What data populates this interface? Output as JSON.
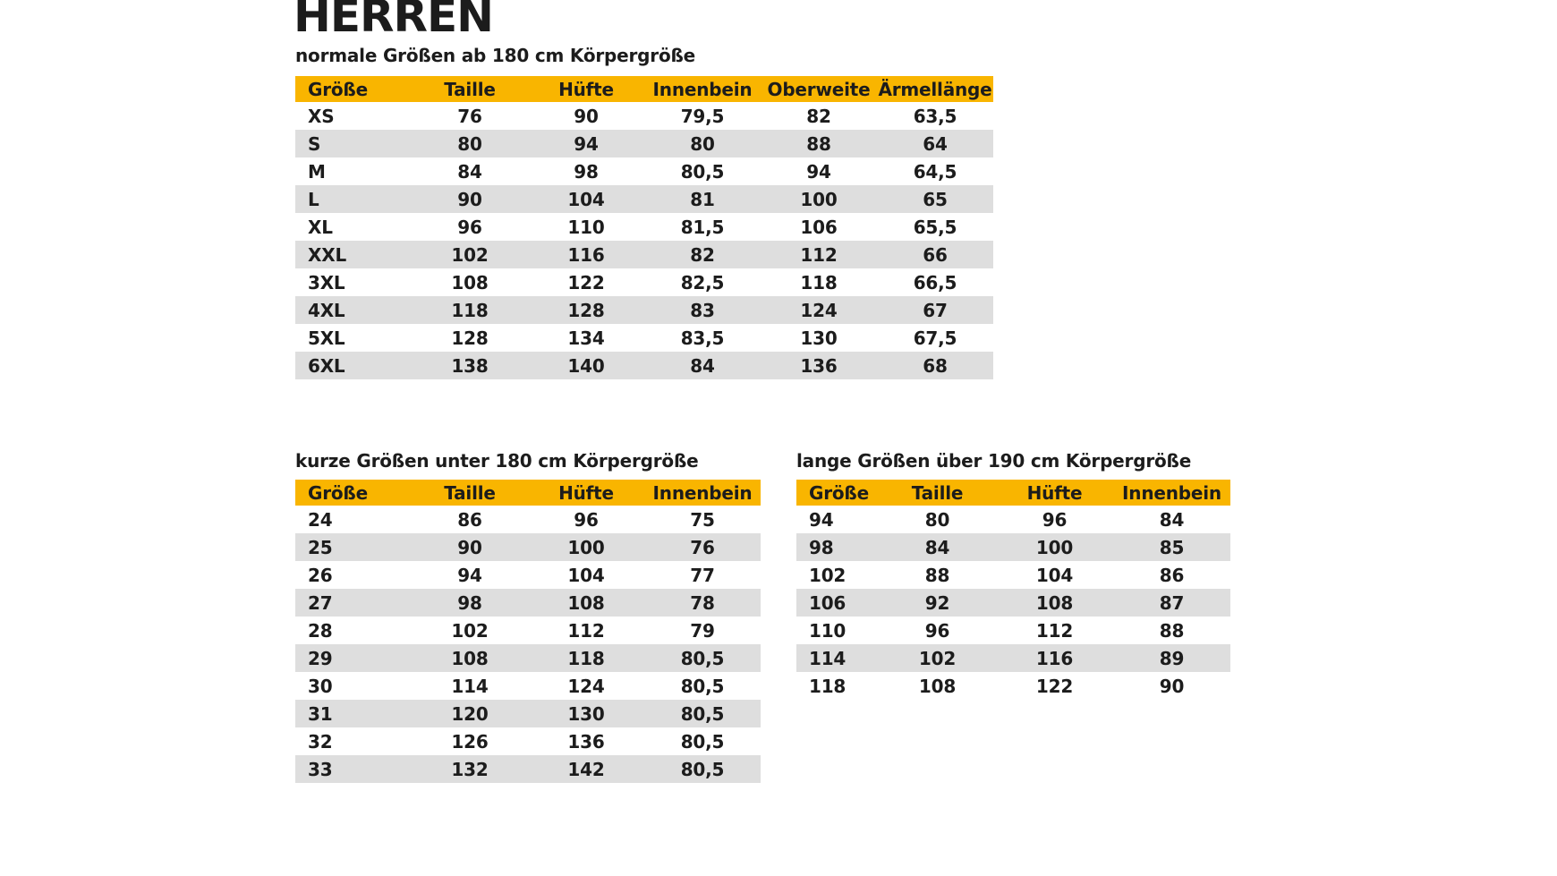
{
  "page": {
    "title": "HERREN"
  },
  "colors": {
    "header_bg": "#F9B500",
    "stripe": "#DEDEDE",
    "text": "#1C1C1C",
    "background": "#FFFFFF"
  },
  "chart_data": [
    {
      "type": "table",
      "title": "normale Größen ab 180 cm Körpergröße",
      "columns": [
        "Größe",
        "Taille",
        "Hüfte",
        "Innenbein",
        "Oberweite",
        "Ärmellänge"
      ],
      "rows": [
        [
          "XS",
          "76",
          "90",
          "79,5",
          "82",
          "63,5"
        ],
        [
          "S",
          "80",
          "94",
          "80",
          "88",
          "64"
        ],
        [
          "M",
          "84",
          "98",
          "80,5",
          "94",
          "64,5"
        ],
        [
          "L",
          "90",
          "104",
          "81",
          "100",
          "65"
        ],
        [
          "XL",
          "96",
          "110",
          "81,5",
          "106",
          "65,5"
        ],
        [
          "XXL",
          "102",
          "116",
          "82",
          "112",
          "66"
        ],
        [
          "3XL",
          "108",
          "122",
          "82,5",
          "118",
          "66,5"
        ],
        [
          "4XL",
          "118",
          "128",
          "83",
          "124",
          "67"
        ],
        [
          "5XL",
          "128",
          "134",
          "83,5",
          "130",
          "67,5"
        ],
        [
          "6XL",
          "138",
          "140",
          "84",
          "136",
          "68"
        ]
      ]
    },
    {
      "type": "table",
      "title": "kurze Größen unter 180 cm Körpergröße",
      "columns": [
        "Größe",
        "Taille",
        "Hüfte",
        "Innenbein"
      ],
      "rows": [
        [
          "24",
          "86",
          "96",
          "75"
        ],
        [
          "25",
          "90",
          "100",
          "76"
        ],
        [
          "26",
          "94",
          "104",
          "77"
        ],
        [
          "27",
          "98",
          "108",
          "78"
        ],
        [
          "28",
          "102",
          "112",
          "79"
        ],
        [
          "29",
          "108",
          "118",
          "80,5"
        ],
        [
          "30",
          "114",
          "124",
          "80,5"
        ],
        [
          "31",
          "120",
          "130",
          "80,5"
        ],
        [
          "32",
          "126",
          "136",
          "80,5"
        ],
        [
          "33",
          "132",
          "142",
          "80,5"
        ]
      ]
    },
    {
      "type": "table",
      "title": "lange Größen über 190 cm Körpergröße",
      "columns": [
        "Größe",
        "Taille",
        "Hüfte",
        "Innenbein"
      ],
      "rows": [
        [
          "94",
          "80",
          "96",
          "84"
        ],
        [
          "98",
          "84",
          "100",
          "85"
        ],
        [
          "102",
          "88",
          "104",
          "86"
        ],
        [
          "106",
          "92",
          "108",
          "87"
        ],
        [
          "110",
          "96",
          "112",
          "88"
        ],
        [
          "114",
          "102",
          "116",
          "89"
        ],
        [
          "118",
          "108",
          "122",
          "90"
        ]
      ]
    }
  ]
}
